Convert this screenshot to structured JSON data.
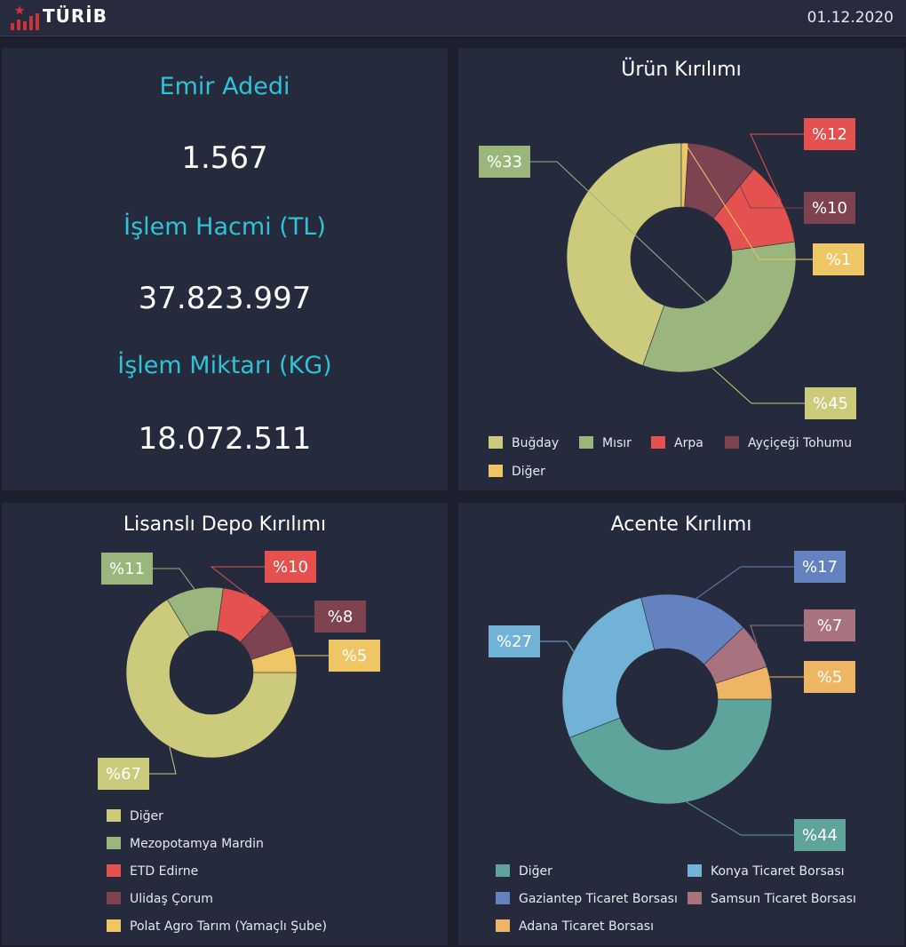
{
  "header": {
    "logo_text": "TÜRİB",
    "date": "01.12.2020"
  },
  "kpis": [
    {
      "label": "Emir Adedi",
      "value": "1.567"
    },
    {
      "label": "İşlem Hacmi (TL)",
      "value": "37.823.997"
    },
    {
      "label": "İşlem Miktarı (KG)",
      "value": "18.072.511"
    }
  ],
  "chart_data": [
    {
      "type": "pie",
      "title": "Ürün Kırılımı",
      "categories": [
        "Buğday",
        "Mısır",
        "Arpa",
        "Ayçiçeği Tohumu",
        "Diğer"
      ],
      "values": [
        45,
        33,
        12,
        10,
        1
      ],
      "labels": [
        "%45",
        "%33",
        "%12",
        "%10",
        "%1"
      ],
      "colors": [
        "#cccb7c",
        "#9ab67d",
        "#e5514f",
        "#7e4350",
        "#eec665"
      ]
    },
    {
      "type": "pie",
      "title": "Lisanslı Depo Kırılımı",
      "categories": [
        "Diğer",
        "Mezopotamya Mardin",
        "ETD Edirne",
        "Ulidaş Çorum",
        "Polat Agro Tarım (Yamaçlı Şube)"
      ],
      "values": [
        67,
        11,
        10,
        8,
        5
      ],
      "labels": [
        "%67",
        "%11",
        "%10",
        "%8",
        "%5"
      ],
      "colors": [
        "#cccb7c",
        "#9ab67d",
        "#e5514f",
        "#7e4350",
        "#eec665"
      ]
    },
    {
      "type": "pie",
      "title": "Acente Kırılımı",
      "categories": [
        "Diğer",
        "Konya Ticaret Borsası",
        "Gaziantep Ticaret Borsası",
        "Samsun Ticaret Borsası",
        "Adana Ticaret Borsası"
      ],
      "values": [
        44,
        27,
        17,
        7,
        5
      ],
      "labels": [
        "%44",
        "%27",
        "%17",
        "%7",
        "%5"
      ],
      "colors": [
        "#5fa49a",
        "#72b2d6",
        "#6382bf",
        "#a8727f",
        "#eeb664"
      ]
    }
  ]
}
